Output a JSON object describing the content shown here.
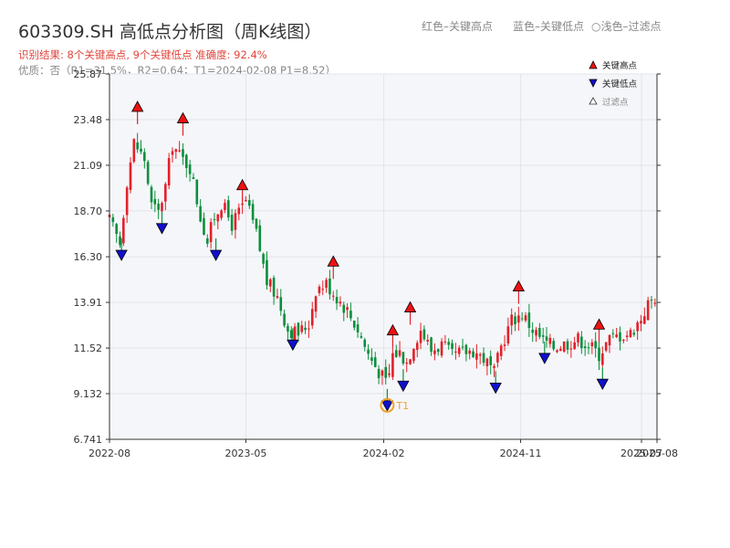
{
  "header": {
    "title": "603309.SH 高低点分析图（周K线图）",
    "legend_red": "红色–关键高点",
    "legend_blue": "蓝色–关键低点",
    "legend_light": "○浅色–过滤点",
    "result": "识别结果: 8个关键高点, 9个关键低点   准确度: 92.4%",
    "quality": "优质：否（R1=31.5%，R2=0.64；T1=2024-02-08 P1=8.52）"
  },
  "colors": {
    "up": "#e3202a",
    "down": "#0a8f3c",
    "high_marker": "#ee1111",
    "low_marker": "#1010cc",
    "t1": "#f0a030",
    "plot_bg": "#f5f6f9",
    "grid": "#e2e4ea",
    "axis": "#333333"
  },
  "chart_data": {
    "type": "candlestick",
    "title": "603309.SH 高低点分析图（周K线图）",
    "xlabel": "",
    "ylabel": "",
    "y_ticks": [
      "6.741",
      "9.132",
      "11.52",
      "13.91",
      "16.30",
      "18.70",
      "21.09",
      "23.48",
      "25.87"
    ],
    "ylim": [
      6.741,
      25.87
    ],
    "x_ticks": [
      "2022-08",
      "2023-05",
      "2024-02",
      "2024-11",
      "2025-07",
      "2025-08"
    ],
    "x_tick_dates": [
      "2022-08-01",
      "2023-05-01",
      "2024-02-01",
      "2024-11-01",
      "2025-07-01",
      "2025-08-01"
    ],
    "x_range": [
      "2022-08-01",
      "2025-08-01"
    ],
    "grid": true,
    "legend_position": "top-right",
    "legend": [
      "关键高点",
      "关键低点",
      "过滤点"
    ],
    "close_path": [
      [
        "2022-08-01",
        18.2
      ],
      [
        "2022-08-22",
        17.0
      ],
      [
        "2022-09-05",
        20.3
      ],
      [
        "2022-09-19",
        22.3
      ],
      [
        "2022-10-10",
        21.4
      ],
      [
        "2022-10-24",
        19.0
      ],
      [
        "2022-11-07",
        18.6
      ],
      [
        "2022-11-21",
        20.0
      ],
      [
        "2022-12-05",
        22.2
      ],
      [
        "2022-12-19",
        21.6
      ],
      [
        "2023-01-09",
        21.0
      ],
      [
        "2023-01-30",
        18.4
      ],
      [
        "2023-02-13",
        17.1
      ],
      [
        "2023-02-27",
        18.4
      ],
      [
        "2023-03-13",
        19.1
      ],
      [
        "2023-04-03",
        18.0
      ],
      [
        "2023-05-01",
        19.2
      ],
      [
        "2023-05-22",
        17.5
      ],
      [
        "2023-06-12",
        15.0
      ],
      [
        "2023-07-03",
        14.2
      ],
      [
        "2023-07-24",
        12.5
      ],
      [
        "2023-08-14",
        12.3
      ],
      [
        "2023-09-04",
        12.8
      ],
      [
        "2023-09-18",
        14.6
      ],
      [
        "2023-10-09",
        14.9
      ],
      [
        "2023-10-30",
        14.2
      ],
      [
        "2023-11-20",
        13.5
      ],
      [
        "2023-12-11",
        12.5
      ],
      [
        "2024-01-01",
        11.2
      ],
      [
        "2024-01-15",
        10.6
      ],
      [
        "2024-02-08",
        9.6
      ],
      [
        "2024-02-19",
        11.2
      ],
      [
        "2024-03-04",
        11.3
      ],
      [
        "2024-03-18",
        10.8
      ],
      [
        "2024-04-01",
        11.8
      ],
      [
        "2024-04-15",
        12.5
      ],
      [
        "2024-05-06",
        11.4
      ],
      [
        "2024-05-27",
        11.7
      ],
      [
        "2024-06-17",
        11.1
      ],
      [
        "2024-07-08",
        11.3
      ],
      [
        "2024-07-29",
        11.4
      ],
      [
        "2024-08-19",
        11.0
      ],
      [
        "2024-09-09",
        10.2
      ],
      [
        "2024-09-23",
        11.6
      ],
      [
        "2024-10-14",
        13.0
      ],
      [
        "2024-11-04",
        13.3
      ],
      [
        "2024-11-25",
        12.5
      ],
      [
        "2024-12-16",
        11.9
      ],
      [
        "2025-01-06",
        11.6
      ],
      [
        "2025-02-03",
        11.8
      ],
      [
        "2025-02-24",
        12.0
      ],
      [
        "2025-03-17",
        11.7
      ],
      [
        "2025-04-07",
        11.2
      ],
      [
        "2025-04-28",
        12.0
      ],
      [
        "2025-05-19",
        12.2
      ],
      [
        "2025-06-09",
        12.3
      ],
      [
        "2025-06-30",
        13.1
      ],
      [
        "2025-07-14",
        13.8
      ],
      [
        "2025-08-01",
        14.3
      ]
    ],
    "key_highs": [
      {
        "date": "2022-09-26",
        "value": 24.1
      },
      {
        "date": "2022-12-26",
        "value": 23.5
      },
      {
        "date": "2023-04-24",
        "value": 20.0
      },
      {
        "date": "2023-10-23",
        "value": 16.0
      },
      {
        "date": "2024-02-19",
        "value": 12.4
      },
      {
        "date": "2024-03-25",
        "value": 13.6
      },
      {
        "date": "2024-10-28",
        "value": 14.7
      },
      {
        "date": "2025-04-07",
        "value": 12.7
      }
    ],
    "key_lows": [
      {
        "date": "2022-08-25",
        "value": 16.4
      },
      {
        "date": "2022-11-14",
        "value": 17.8
      },
      {
        "date": "2023-03-02",
        "value": 16.4
      },
      {
        "date": "2023-08-03",
        "value": 11.7
      },
      {
        "date": "2024-02-08",
        "value": 8.52
      },
      {
        "date": "2024-03-11",
        "value": 9.55
      },
      {
        "date": "2024-09-12",
        "value": 9.45
      },
      {
        "date": "2024-12-19",
        "value": 11.0
      },
      {
        "date": "2025-04-14",
        "value": 9.65
      }
    ],
    "annotations": [
      {
        "label": "T1",
        "date": "2024-02-08",
        "value": 8.52
      }
    ]
  }
}
